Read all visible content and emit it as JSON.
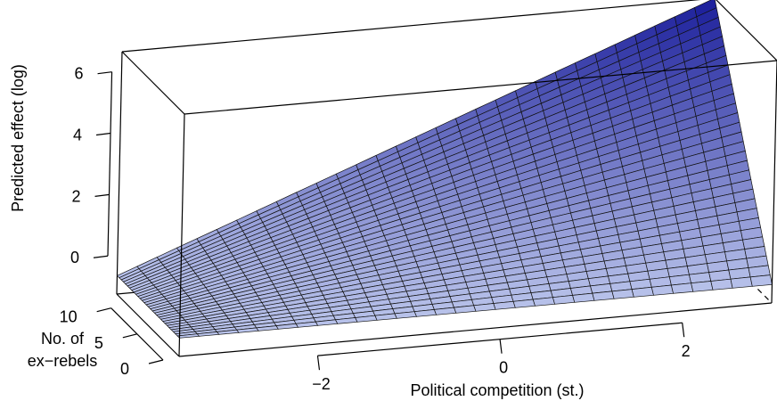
{
  "chart_data": {
    "type": "surface",
    "title": "",
    "xlabel": "Political competition (st.)",
    "ylabel_lines": [
      "No. of",
      "ex−rebels"
    ],
    "zlabel": "Predicted effect (log)",
    "xlim": [
      -3.5,
      3
    ],
    "ylim": [
      0,
      12
    ],
    "zlim": [
      -1.3,
      6.6
    ],
    "x_ticks": [
      -2,
      0,
      2
    ],
    "x_tick_labels": [
      "−2",
      "0",
      "2"
    ],
    "y_ticks": [
      0,
      5,
      10
    ],
    "y_tick_labels": [
      "0",
      "5",
      "10"
    ],
    "z_ticks": [
      0,
      2,
      4,
      6
    ],
    "z_tick_labels": [
      "0",
      "2",
      "4",
      "6"
    ],
    "surface": {
      "grid_x_count": 30,
      "grid_y_count": 30,
      "corners": [
        {
          "x": -3.5,
          "y": 0,
          "z": -0.7
        },
        {
          "x": 3,
          "y": 0,
          "z": -0.7
        },
        {
          "x": -3.5,
          "y": 12,
          "z": -0.7
        },
        {
          "x": 3,
          "y": 12,
          "z": 6.6
        }
      ],
      "color_low": "#b8c2ea",
      "color_high": "#1a1d9a",
      "mesh_color": "#111111"
    },
    "box_color": "#000000",
    "hidden_edge_style": "dashed"
  }
}
